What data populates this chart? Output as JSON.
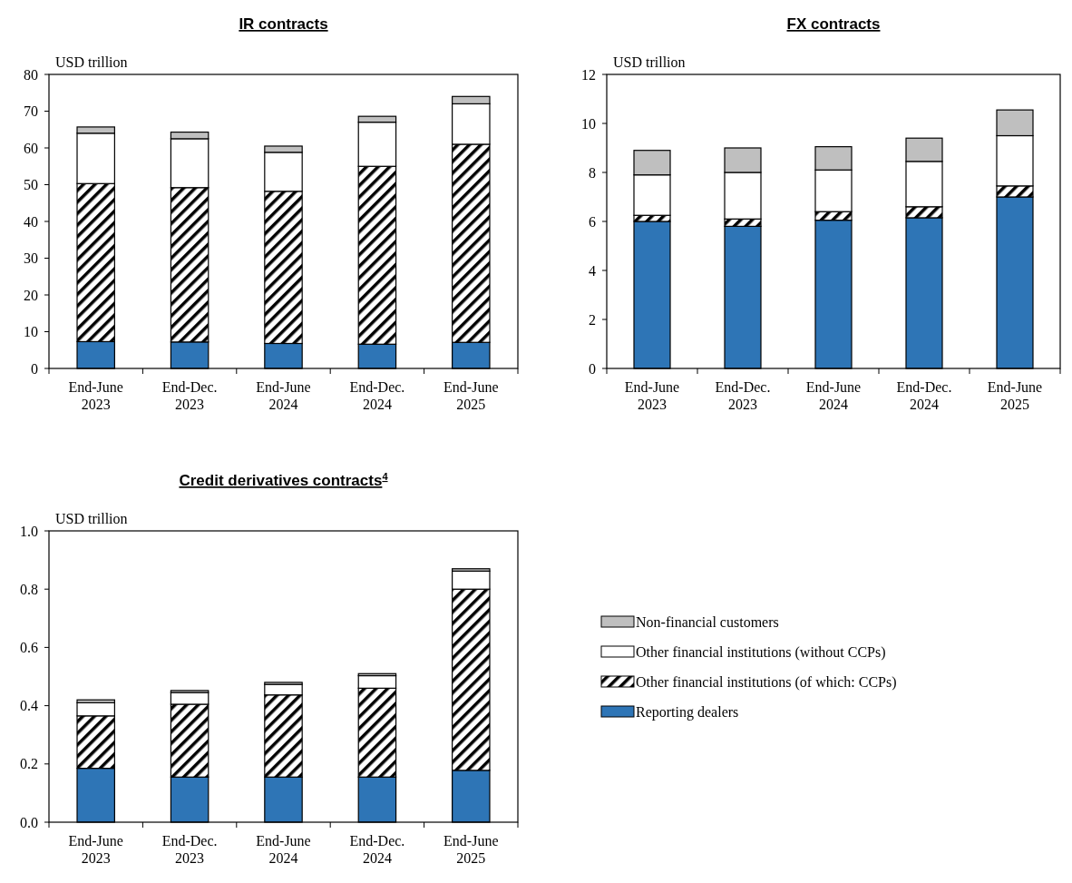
{
  "chart_data": [
    {
      "type": "bar",
      "title": "IR contracts",
      "ylabel": "USD trillion",
      "stacked": true,
      "legend": false,
      "categories": [
        "End-June 2023",
        "End-Dec. 2023",
        "End-June 2024",
        "End-Dec. 2024",
        "End-June 2025"
      ],
      "ylim": [
        0,
        80
      ],
      "yticks": [
        0,
        10,
        20,
        30,
        40,
        50,
        60,
        70,
        80
      ],
      "series": [
        {
          "color": "#2e75b6",
          "values": [
            7.3,
            7.2,
            6.8,
            6.6,
            7.1
          ]
        },
        {
          "color": "#000000",
          "values": [
            43.0,
            42.0,
            41.4,
            48.4,
            53.9
          ]
        },
        {
          "color": "#ffffff",
          "values": [
            13.7,
            13.3,
            10.6,
            12.0,
            11.0
          ]
        },
        {
          "color": "#bfbfbf",
          "values": [
            1.7,
            1.8,
            1.7,
            1.6,
            2.0
          ]
        }
      ]
    },
    {
      "type": "bar",
      "title": "FX contracts",
      "ylabel": "USD trillion",
      "stacked": true,
      "legend": false,
      "categories": [
        "End-June 2023",
        "End-Dec. 2023",
        "End-June 2024",
        "End-Dec. 2024",
        "End-June 2025"
      ],
      "ylim": [
        0,
        12
      ],
      "yticks": [
        0,
        2,
        4,
        6,
        8,
        10,
        12
      ],
      "series": [
        {
          "color": "#2e75b6",
          "values": [
            6.0,
            5.8,
            6.05,
            6.15,
            7.0
          ]
        },
        {
          "color": "#000000",
          "values": [
            0.25,
            0.3,
            0.35,
            0.45,
            0.45
          ]
        },
        {
          "color": "#ffffff",
          "values": [
            1.65,
            1.9,
            1.7,
            1.85,
            2.05
          ]
        },
        {
          "color": "#bfbfbf",
          "values": [
            1.0,
            1.0,
            0.95,
            0.95,
            1.05
          ]
        }
      ]
    },
    {
      "type": "bar",
      "title": "Credit derivatives contracts$^{4}$",
      "ylabel": "USD trillion",
      "stacked": true,
      "legend": "right",
      "categories": [
        "End-June 2023",
        "End-Dec. 2023",
        "End-June 2024",
        "End-Dec. 2024",
        "End-June 2025"
      ],
      "ylim": [
        0,
        1
      ],
      "yticks": [
        {
          "value": 0,
          "label": "0.0"
        },
        {
          "value": 0.2,
          "label": "0.2"
        },
        {
          "value": 0.4,
          "label": "0.4"
        },
        {
          "value": 0.6,
          "label": "0.6"
        },
        {
          "value": 0.8,
          "label": "0.8"
        },
        {
          "value": 1,
          "label": "1.0"
        }
      ],
      "series": [
        {
          "name": "Reporting dealers",
          "color": "#2e75b6",
          "values": [
            0.185,
            0.155,
            0.155,
            0.155,
            0.178
          ]
        },
        {
          "name": "Other financial institutions (of which: CCPs)",
          "color": "#000000",
          "values": [
            0.18,
            0.25,
            0.282,
            0.305,
            0.622
          ]
        },
        {
          "name": "Other financial institutions (without CCPs)",
          "color": "#ffffff",
          "values": [
            0.045,
            0.04,
            0.036,
            0.043,
            0.062
          ]
        },
        {
          "name": "Non-financial customers",
          "color": "#bfbfbf",
          "values": [
            0.01,
            0.007,
            0.007,
            0.007,
            0.008
          ]
        }
      ]
    }
  ]
}
